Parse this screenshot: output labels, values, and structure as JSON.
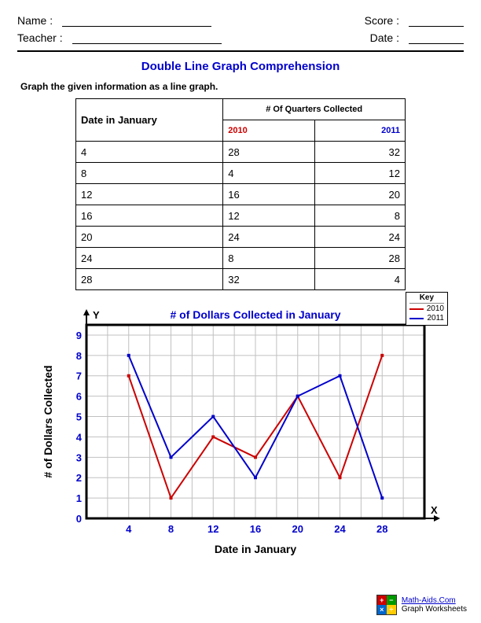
{
  "header": {
    "name_label": "Name :",
    "teacher_label": "Teacher :",
    "score_label": "Score :",
    "date_label": "Date :"
  },
  "title": {
    "text": "Double Line Graph Comprehension",
    "color": "#0000cc"
  },
  "instruction": "Graph the given information as a line graph.",
  "table": {
    "col1_header": "Date in January",
    "col2_header": "# Of Quarters Collected",
    "series_a_label": "2010",
    "series_b_label": "2011",
    "series_a_color": "#cc0000",
    "series_b_color": "#0000cc",
    "rows": [
      {
        "date": "4",
        "a": "28",
        "b": "32"
      },
      {
        "date": "8",
        "a": "4",
        "b": "12"
      },
      {
        "date": "12",
        "a": "16",
        "b": "20"
      },
      {
        "date": "16",
        "a": "12",
        "b": "8"
      },
      {
        "date": "20",
        "a": "24",
        "b": "24"
      },
      {
        "date": "24",
        "a": "8",
        "b": "28"
      },
      {
        "date": "28",
        "a": "32",
        "b": "4"
      }
    ]
  },
  "chart": {
    "type": "line",
    "title": "# of Dollars Collected in January",
    "xlabel": "Date in January",
    "ylabel": "# of Dollars Collected",
    "y_axis_label": "Y",
    "x_axis_label": "X",
    "x_ticks": [
      4,
      8,
      12,
      16,
      20,
      24,
      28
    ],
    "y_ticks": [
      0,
      1,
      2,
      3,
      4,
      5,
      6,
      7,
      8,
      9
    ],
    "xlim": [
      0,
      32
    ],
    "ylim": [
      0,
      9.5
    ],
    "grid_color": "#c0c0c0",
    "border_color": "#000000",
    "background": "#ffffff",
    "x_tick_color": "#0000cc",
    "y_tick_color": "#0000cc",
    "title_color": "#0000cc",
    "x_tick_fontsize": 13,
    "y_tick_fontsize": 13,
    "tick_fontweight": "bold",
    "line_width": 2,
    "marker_size": 4,
    "series": [
      {
        "name": "2010",
        "color": "#cc0000",
        "x": [
          4,
          8,
          12,
          16,
          20,
          24,
          28
        ],
        "y": [
          7,
          1,
          4,
          3,
          6,
          2,
          8
        ]
      },
      {
        "name": "2011",
        "color": "#0000cc",
        "x": [
          4,
          8,
          12,
          16,
          20,
          24,
          28
        ],
        "y": [
          8,
          3,
          5,
          2,
          6,
          7,
          1
        ]
      }
    ],
    "legend": {
      "title": "Key"
    }
  },
  "footer": {
    "brand": "Math-Aids.Com",
    "subtitle": "Graph Worksheets",
    "logo_colors": [
      "#cc0000",
      "#009900",
      "#0066cc",
      "#ffcc00"
    ],
    "logo_glyphs": [
      "+",
      "−",
      "×",
      "÷"
    ]
  }
}
